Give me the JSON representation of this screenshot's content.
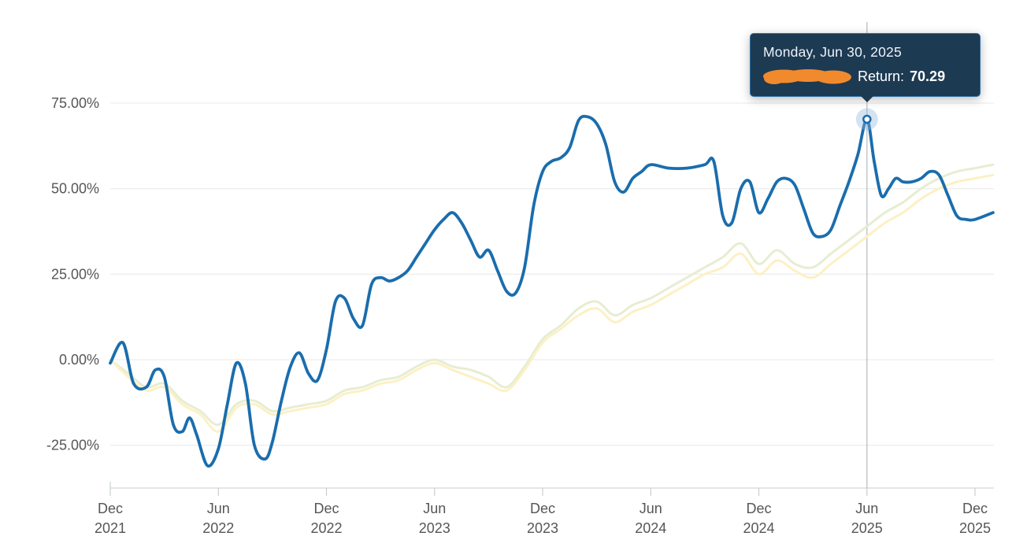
{
  "tooltip": {
    "date": "Monday, Jun 30, 2025",
    "label": "Return:",
    "value": "70.29"
  },
  "colors": {
    "background": "#ffffff",
    "grid": "#e8e8e8",
    "axis_line": "#c9ced2",
    "axis_text": "#565656",
    "crosshair": "#b2bac0",
    "halo": "#8fb6d9",
    "tooltip_bg": "#1d3a53",
    "tooltip_border": "#2e6da4",
    "redaction": "#f18a2d",
    "main_line": "#1a6dad"
  },
  "chart_data": {
    "type": "line",
    "title": "",
    "xlabel": "",
    "ylabel": "",
    "legend": "none",
    "grid": true,
    "x_unit": "months since Dec 2021",
    "xlim": [
      0,
      49
    ],
    "ylim": [
      -37.5,
      98.7
    ],
    "y_ticks": [
      {
        "v": 75,
        "label": "75.00%"
      },
      {
        "v": 50,
        "label": "50.00%"
      },
      {
        "v": 25,
        "label": "25.00%"
      },
      {
        "v": 0,
        "label": "0.00%"
      },
      {
        "v": -25,
        "label": "-25.00%"
      }
    ],
    "x_ticks": [
      {
        "m": 0,
        "line1": "Dec",
        "line2": "2021"
      },
      {
        "m": 6,
        "line1": "Jun",
        "line2": "2022"
      },
      {
        "m": 12,
        "line1": "Dec",
        "line2": "2022"
      },
      {
        "m": 18,
        "line1": "Jun",
        "line2": "2023"
      },
      {
        "m": 24,
        "line1": "Dec",
        "line2": "2023"
      },
      {
        "m": 30,
        "line1": "Jun",
        "line2": "2024"
      },
      {
        "m": 36,
        "line1": "Dec",
        "line2": "2024"
      },
      {
        "m": 42,
        "line1": "Jun",
        "line2": "2025"
      },
      {
        "m": 48,
        "line1": "Dec",
        "line2": "2025"
      }
    ],
    "crosshair_m": 42,
    "marker": {
      "series": "main-return",
      "m": 42,
      "value": 70.29,
      "date": "Monday, Jun 30, 2025"
    },
    "series": [
      {
        "name": "benchmark-a",
        "color": "#e7edd2",
        "stroke_width": 3,
        "x": [
          0,
          1,
          2,
          3,
          4,
          5,
          6,
          7,
          8,
          9,
          10,
          11,
          12,
          13,
          14,
          15,
          16,
          17,
          18,
          19,
          20,
          21,
          22,
          23,
          24,
          25,
          26,
          27,
          28,
          29,
          30,
          31,
          32,
          33,
          34,
          35,
          36,
          37,
          38,
          39,
          40,
          41,
          42,
          43,
          44,
          45,
          46,
          47,
          48,
          49
        ],
        "values": [
          0,
          -4,
          -8,
          -7,
          -12,
          -15,
          -19,
          -13,
          -12,
          -15,
          -14,
          -13,
          -12,
          -9,
          -8,
          -6,
          -5,
          -2,
          0,
          -2,
          -3,
          -5,
          -8,
          -2,
          6,
          10,
          15,
          17,
          13,
          16,
          18,
          21,
          24,
          27,
          30,
          34,
          28,
          32,
          28,
          27,
          31,
          35,
          39,
          43,
          46,
          50,
          53,
          55,
          56,
          57
        ]
      },
      {
        "name": "benchmark-b",
        "color": "#fdf0c4",
        "stroke_width": 3,
        "x": [
          0,
          1,
          2,
          3,
          4,
          5,
          6,
          7,
          8,
          9,
          10,
          11,
          12,
          13,
          14,
          15,
          16,
          17,
          18,
          19,
          20,
          21,
          22,
          23,
          24,
          25,
          26,
          27,
          28,
          29,
          30,
          31,
          32,
          33,
          34,
          35,
          36,
          37,
          38,
          39,
          40,
          41,
          42,
          43,
          44,
          45,
          46,
          47,
          48,
          49
        ],
        "values": [
          0,
          -5,
          -9,
          -8,
          -13,
          -16,
          -21,
          -14,
          -13,
          -16,
          -15,
          -14,
          -13,
          -10,
          -9,
          -7,
          -6,
          -3,
          -1,
          -3,
          -5,
          -7,
          -9,
          -3,
          5,
          9,
          13,
          15,
          11,
          14,
          16,
          19,
          22,
          25,
          27,
          31,
          25,
          29,
          26,
          24,
          28,
          32,
          36,
          40,
          43,
          47,
          50,
          52,
          53,
          54
        ]
      },
      {
        "name": "main-return",
        "color": "#1a6dad",
        "stroke_width": 3.8,
        "x": [
          0,
          0.7,
          1.3,
          2,
          2.5,
          3,
          3.5,
          4,
          4.4,
          4.8,
          5.4,
          6,
          6.5,
          7,
          7.5,
          8,
          8.6,
          9,
          9.5,
          10,
          10.5,
          11,
          11.5,
          12,
          12.5,
          13,
          13.5,
          14,
          14.5,
          15,
          15.5,
          16,
          16.5,
          17,
          17.5,
          18,
          18.5,
          19,
          19.5,
          20,
          20.5,
          21,
          21.5,
          22,
          22.5,
          23,
          23.5,
          24,
          24.5,
          25,
          25.5,
          26,
          26.5,
          27,
          27.5,
          28,
          28.5,
          29,
          29.5,
          30,
          31,
          32,
          33,
          33.5,
          34,
          34.5,
          35,
          35.5,
          36,
          36.5,
          37,
          37.5,
          38,
          38.5,
          39,
          39.5,
          40,
          40.5,
          41,
          41.5,
          42,
          42.4,
          42.8,
          43.2,
          43.6,
          44,
          44.5,
          45,
          45.5,
          46,
          46.5,
          47,
          47.5,
          48,
          49
        ],
        "values": [
          -1,
          5,
          -7,
          -8,
          -3,
          -5,
          -19,
          -21,
          -17,
          -22,
          -31,
          -26,
          -13,
          -1,
          -7,
          -25,
          -29,
          -24,
          -12,
          -2,
          2,
          -4,
          -6,
          3,
          17,
          18,
          12,
          10,
          22,
          24,
          23,
          24,
          26,
          30,
          34,
          38,
          41,
          43,
          40,
          35,
          30,
          32,
          26,
          20,
          19.5,
          27,
          45,
          55,
          58,
          59,
          62,
          70,
          71,
          69,
          63,
          52,
          49,
          53,
          55,
          57,
          56,
          56,
          57,
          58,
          42,
          40,
          50,
          52,
          43,
          47,
          52,
          53,
          51,
          44,
          37,
          36,
          38,
          45,
          52,
          60,
          70.29,
          58,
          48,
          50,
          53,
          52,
          52,
          53,
          55,
          54,
          48,
          42,
          41,
          41,
          43
        ]
      }
    ]
  }
}
